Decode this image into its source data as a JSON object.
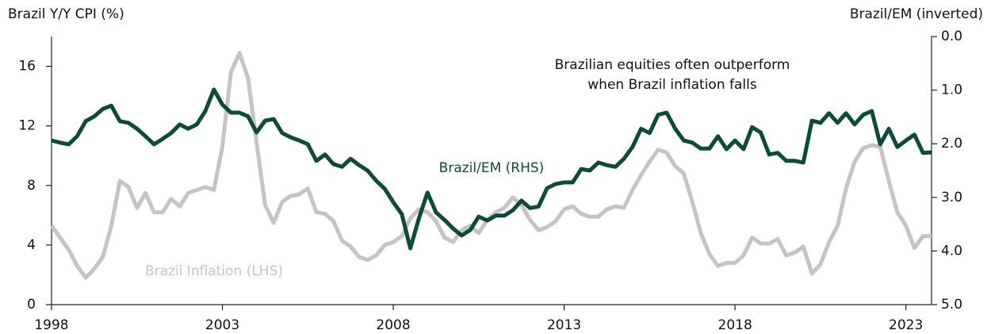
{
  "chart_data": {
    "type": "line",
    "y_title": "Brazil  Y/Y CPI (%)",
    "y2_title": "Brazil/EM (inverted)",
    "annotation": [
      "Brazilian equities often outperform",
      "when Brazil inflation falls"
    ],
    "x": [
      1998,
      1998.25,
      1998.5,
      1998.75,
      1999,
      1999.25,
      1999.5,
      1999.75,
      2000,
      2000.25,
      2000.5,
      2000.75,
      2001,
      2001.25,
      2001.5,
      2001.75,
      2002,
      2002.25,
      2002.5,
      2002.75,
      2003,
      2003.25,
      2003.5,
      2003.75,
      2004,
      2004.25,
      2004.5,
      2004.75,
      2005,
      2005.25,
      2005.5,
      2005.75,
      2006,
      2006.25,
      2006.5,
      2006.75,
      2007,
      2007.25,
      2007.5,
      2007.75,
      2008,
      2008.25,
      2008.5,
      2008.75,
      2009,
      2009.25,
      2009.5,
      2009.75,
      2010,
      2010.25,
      2010.5,
      2010.75,
      2011,
      2011.25,
      2011.5,
      2011.75,
      2012,
      2012.25,
      2012.5,
      2012.75,
      2013,
      2013.25,
      2013.5,
      2013.75,
      2014,
      2014.25,
      2014.5,
      2014.75,
      2015,
      2015.25,
      2015.5,
      2015.75,
      2016,
      2016.25,
      2016.5,
      2016.75,
      2017,
      2017.25,
      2017.5,
      2017.75,
      2018,
      2018.25,
      2018.5,
      2018.75,
      2019,
      2019.25,
      2019.5,
      2019.75,
      2020,
      2020.25,
      2020.5,
      2020.75,
      2021,
      2021.25,
      2021.5,
      2021.75,
      2022,
      2022.25,
      2022.5,
      2022.75,
      2023,
      2023.25,
      2023.5,
      2023.75
    ],
    "series": [
      {
        "name": "Brazil/EM (RHS)",
        "color": "#0d4a3a",
        "axis": "y2",
        "values": [
          1.94,
          1.98,
          2.01,
          1.86,
          1.58,
          1.49,
          1.35,
          1.29,
          1.58,
          1.61,
          1.72,
          1.86,
          2.01,
          1.91,
          1.8,
          1.64,
          1.72,
          1.64,
          1.39,
          0.99,
          1.27,
          1.42,
          1.42,
          1.49,
          1.79,
          1.57,
          1.54,
          1.8,
          1.88,
          1.94,
          2.01,
          2.32,
          2.2,
          2.38,
          2.43,
          2.28,
          2.4,
          2.5,
          2.69,
          2.84,
          3.09,
          3.31,
          3.95,
          3.39,
          2.91,
          3.28,
          3.42,
          3.58,
          3.71,
          3.61,
          3.36,
          3.43,
          3.34,
          3.34,
          3.24,
          3.06,
          3.2,
          3.17,
          2.83,
          2.75,
          2.72,
          2.72,
          2.47,
          2.5,
          2.35,
          2.4,
          2.43,
          2.28,
          2.06,
          1.72,
          1.8,
          1.46,
          1.42,
          1.72,
          1.94,
          1.98,
          2.09,
          2.09,
          1.86,
          2.1,
          1.94,
          2.1,
          1.69,
          1.79,
          2.2,
          2.17,
          2.32,
          2.32,
          2.35,
          1.57,
          1.61,
          1.43,
          1.61,
          1.43,
          1.64,
          1.46,
          1.39,
          2.01,
          1.72,
          2.06,
          1.94,
          1.83,
          2.17,
          2.16
        ]
      },
      {
        "name": "Brazil Inflation (LHS)",
        "color": "#c4c4c4",
        "axis": "y",
        "values": [
          5.3,
          4.5,
          3.7,
          2.6,
          1.8,
          2.4,
          3.2,
          5.3,
          8.3,
          7.9,
          6.5,
          7.5,
          6.2,
          6.2,
          7.1,
          6.6,
          7.5,
          7.7,
          7.9,
          7.7,
          10.6,
          15.6,
          16.9,
          15.2,
          10.9,
          6.7,
          5.5,
          6.9,
          7.3,
          7.4,
          7.8,
          6.2,
          6.1,
          5.6,
          4.3,
          3.9,
          3.2,
          3.0,
          3.3,
          4.0,
          4.2,
          4.6,
          5.8,
          6.4,
          6.2,
          5.6,
          4.5,
          4.2,
          5.0,
          5.3,
          4.8,
          5.7,
          6.2,
          6.5,
          7.2,
          6.7,
          5.7,
          5.0,
          5.2,
          5.6,
          6.4,
          6.6,
          6.1,
          5.9,
          5.9,
          6.4,
          6.6,
          6.5,
          7.7,
          8.7,
          9.6,
          10.4,
          10.2,
          9.3,
          8.8,
          6.9,
          4.8,
          3.4,
          2.6,
          2.8,
          2.8,
          3.3,
          4.5,
          4.1,
          4.1,
          4.4,
          3.3,
          3.5,
          3.9,
          2.1,
          2.7,
          4.2,
          5.3,
          7.8,
          9.6,
          10.5,
          10.7,
          10.6,
          8.3,
          6.2,
          5.3,
          3.8,
          4.6,
          4.6
        ]
      }
    ],
    "xlim": [
      1998,
      2023.75
    ],
    "xticks": [
      1998,
      2003,
      2008,
      2013,
      2018,
      2023
    ],
    "ylim": [
      0,
      18
    ],
    "yticks": [
      0,
      4,
      8,
      12,
      16
    ],
    "y2lim": [
      5,
      0
    ],
    "y2ticks": [
      {
        "value": 0,
        "label": "0.0"
      },
      {
        "value": 1,
        "label": "1.0"
      },
      {
        "value": 2,
        "label": "2.0"
      },
      {
        "value": 3,
        "label": "3.0"
      },
      {
        "value": 4,
        "label": "4.0"
      },
      {
        "value": 5,
        "label": "5.0"
      }
    ],
    "grid": false
  }
}
